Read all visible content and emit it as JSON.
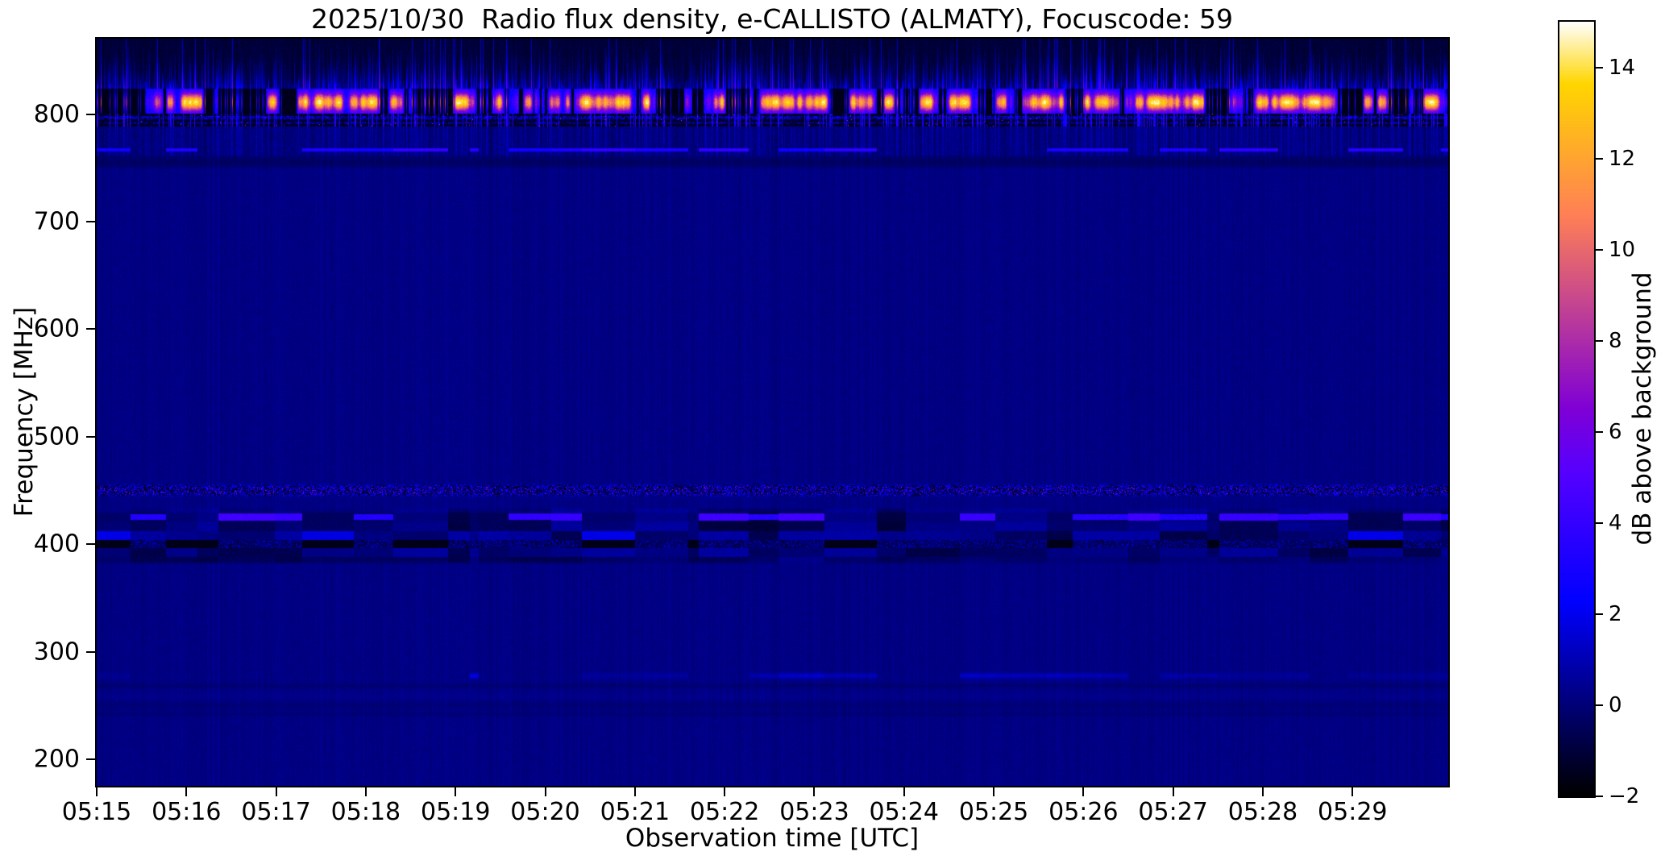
{
  "chart_data": {
    "type": "heatmap",
    "title": "2025/10/30  Radio flux density, e-CALLISTO (ALMATY), Focuscode: 59",
    "xlabel": "Observation time [UTC]",
    "ylabel": "Frequency [MHz]",
    "x_ticks": [
      "05:15",
      "05:16",
      "05:17",
      "05:18",
      "05:19",
      "05:20",
      "05:21",
      "05:22",
      "05:23",
      "05:24",
      "05:25",
      "05:26",
      "05:27",
      "05:28",
      "05:29"
    ],
    "x_tick_interval_seconds": 60,
    "x_span_seconds": 904,
    "x_range": [
      "05:15:00",
      "05:30:04"
    ],
    "y_ticks": [
      800,
      700,
      600,
      500,
      400,
      300,
      200
    ],
    "y_range_mhz": [
      175.2,
      870.3
    ],
    "grid": false,
    "colorbar": {
      "label": "dB above background",
      "colormap": "gnuplot2",
      "range": [
        -2,
        15
      ],
      "ticks": [
        {
          "v": 14,
          "label": "14"
        },
        {
          "v": 12,
          "label": "12"
        },
        {
          "v": 10,
          "label": "10"
        },
        {
          "v": 8,
          "label": "8"
        },
        {
          "v": 6,
          "label": "6"
        },
        {
          "v": 4,
          "label": "4"
        },
        {
          "v": 2,
          "label": "2"
        },
        {
          "v": 0,
          "label": "0"
        },
        {
          "v": -2,
          "label": "−2"
        }
      ]
    },
    "background_level_db": 0.2,
    "bands": [
      {
        "kind": "top_streaks",
        "f0": 824,
        "f1": 870.3,
        "base_db": -1.05,
        "max_streak_db": 5.2,
        "note": "dense vertical blue RFI streaks on near-black background"
      },
      {
        "kind": "burst_band",
        "f0": 801,
        "f1": 824,
        "center": 811.5,
        "sigma": 5.8,
        "base_db": -1.55,
        "peak_db": 15,
        "note": "intermittent intense orange/yellow RFI bursts around 805-820 MHz"
      },
      {
        "kind": "speckle_rows",
        "f0": 789,
        "f1": 801,
        "base_db": -1.25,
        "rows": [
          797.2,
          792.2
        ],
        "note": "dark lane with dotted blue rows and pink flecks"
      },
      {
        "kind": "noise_band",
        "f0": 762,
        "f1": 789,
        "base_db": -0.15,
        "dash_row": 767,
        "dash_db": [
          1.4,
          3.8
        ],
        "note": "blue noisy band with intermittent dashed line near 767 MHz"
      },
      {
        "kind": "dark_lane",
        "f0": 750,
        "f1": 762,
        "center": 756,
        "depth_db": 0.55
      },
      {
        "kind": "speckle_band",
        "f0": 443,
        "f1": 457,
        "center": 450,
        "base_db": -1.15,
        "speckle_db": [
          0.9,
          3.7
        ],
        "hot_db": [
          4.5,
          8
        ],
        "note": "dark lane filled with blue/magenta vertical speckles near 450 MHz"
      },
      {
        "kind": "blocky",
        "f0": 381,
        "f1": 433,
        "line_mhz": 425.3,
        "line_db": [
          1.8,
          4.4
        ],
        "dark_lane_mhz": [
          396,
          404
        ],
        "note": "segmented blocky RFI between 381-433 MHz with bright blue dashes near 425 MHz"
      },
      {
        "kind": "dash_line",
        "f0": 273.5,
        "f1": 281,
        "center": 277.3,
        "db": [
          0.5,
          2.2
        ],
        "note": "faint intermittent brighter-blue dashes near 277 MHz, strongest 05:19-05:25"
      },
      {
        "kind": "faint_lines",
        "dark": [
          [
            268,
            1.3,
            0.32
          ],
          [
            249.5,
            2.8,
            0.22
          ],
          [
            241.5,
            1.1,
            0.3
          ]
        ],
        "bright": [
          [
            258,
            2.0,
            0.12
          ]
        ],
        "note": "very faint darker horizontal lines in the low-frequency background"
      }
    ]
  }
}
